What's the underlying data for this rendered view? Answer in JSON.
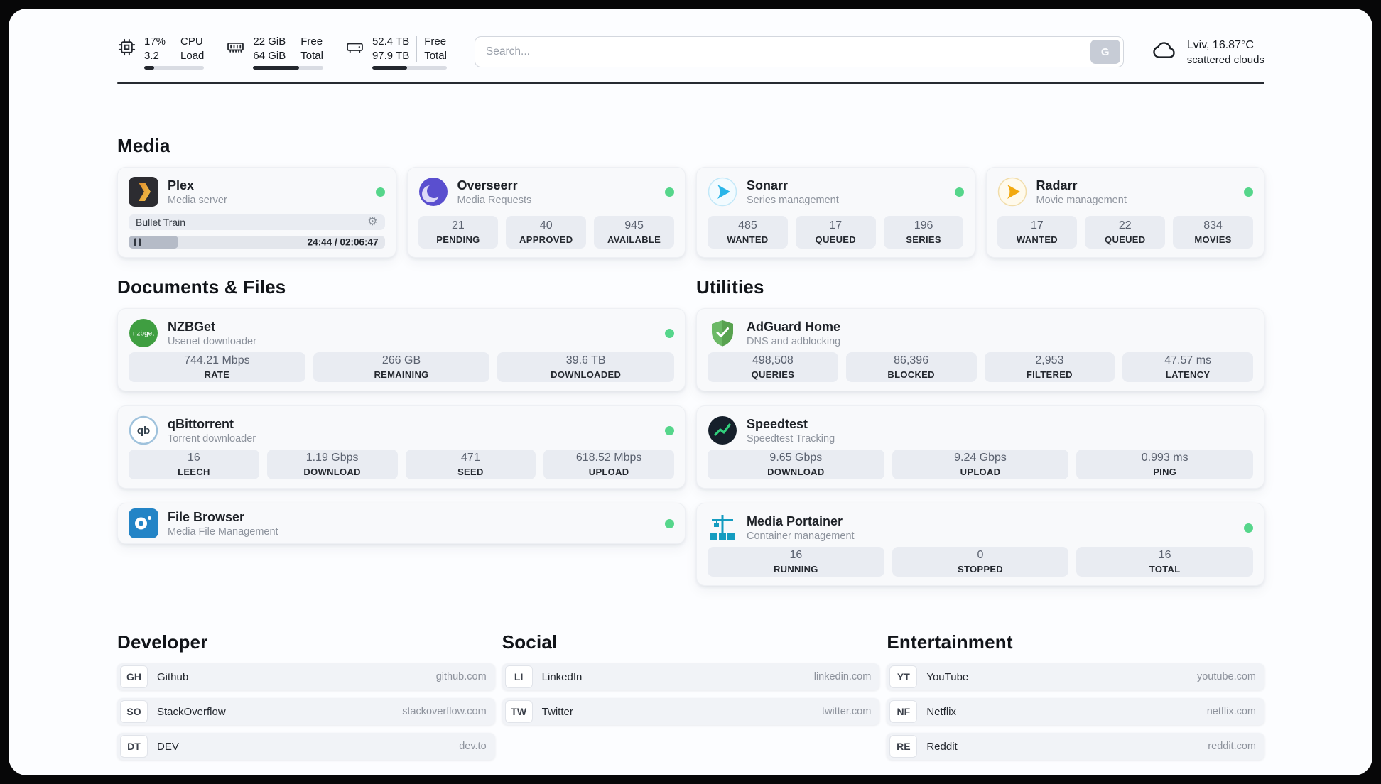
{
  "colors": {
    "status_green": "#56d68b",
    "bar_dark": "#23272e"
  },
  "icons": {
    "gear": "⚙",
    "nzbget_label": "nzbget",
    "qb_label": "qb"
  },
  "topbar": {
    "cpu": {
      "values": [
        "17%",
        "3.2"
      ],
      "labels": [
        "CPU",
        "Load"
      ],
      "percent": 17
    },
    "ram": {
      "values": [
        "22 GiB",
        "64 GiB"
      ],
      "labels": [
        "Free",
        "Total"
      ],
      "percent": 66
    },
    "disk": {
      "values": [
        "52.4 TB",
        "97.9 TB"
      ],
      "labels": [
        "Free",
        "Total"
      ],
      "percent": 47
    },
    "search": {
      "placeholder": "Search...",
      "button": "G"
    },
    "weather": {
      "location": "Lviv, 16.87°C",
      "condition": "scattered clouds"
    }
  },
  "sections": {
    "media": "Media",
    "documents": "Documents & Files",
    "utilities": "Utilities",
    "developer": "Developer",
    "social": "Social",
    "entertainment": "Entertainment"
  },
  "apps": {
    "plex": {
      "name": "Plex",
      "subtitle": "Media server",
      "now_playing": "Bullet Train",
      "time": "24:44 / 02:06:47",
      "progress_percent": 19.5
    },
    "overseerr": {
      "name": "Overseerr",
      "subtitle": "Media Requests",
      "stats": [
        {
          "value": "21",
          "label": "PENDING"
        },
        {
          "value": "40",
          "label": "APPROVED"
        },
        {
          "value": "945",
          "label": "AVAILABLE"
        }
      ]
    },
    "sonarr": {
      "name": "Sonarr",
      "subtitle": "Series management",
      "stats": [
        {
          "value": "485",
          "label": "WANTED"
        },
        {
          "value": "17",
          "label": "QUEUED"
        },
        {
          "value": "196",
          "label": "SERIES"
        }
      ]
    },
    "radarr": {
      "name": "Radarr",
      "subtitle": "Movie management",
      "stats": [
        {
          "value": "17",
          "label": "WANTED"
        },
        {
          "value": "22",
          "label": "QUEUED"
        },
        {
          "value": "834",
          "label": "MOVIES"
        }
      ]
    },
    "nzbget": {
      "name": "NZBGet",
      "subtitle": "Usenet downloader",
      "stats": [
        {
          "value": "744.21 Mbps",
          "label": "RATE"
        },
        {
          "value": "266 GB",
          "label": "REMAINING"
        },
        {
          "value": "39.6 TB",
          "label": "DOWNLOADED"
        }
      ]
    },
    "qbittorrent": {
      "name": "qBittorrent",
      "subtitle": "Torrent downloader",
      "stats": [
        {
          "value": "16",
          "label": "LEECH"
        },
        {
          "value": "1.19 Gbps",
          "label": "DOWNLOAD"
        },
        {
          "value": "471",
          "label": "SEED"
        },
        {
          "value": "618.52 Mbps",
          "label": "UPLOAD"
        }
      ]
    },
    "filebrowser": {
      "name": "File Browser",
      "subtitle": "Media File Management"
    },
    "adguard": {
      "name": "AdGuard Home",
      "subtitle": "DNS and adblocking",
      "stats": [
        {
          "value": "498,508",
          "label": "QUERIES"
        },
        {
          "value": "86,396",
          "label": "BLOCKED"
        },
        {
          "value": "2,953",
          "label": "FILTERED"
        },
        {
          "value": "47.57 ms",
          "label": "LATENCY"
        }
      ]
    },
    "speedtest": {
      "name": "Speedtest",
      "subtitle": "Speedtest Tracking",
      "stats": [
        {
          "value": "9.65 Gbps",
          "label": "DOWNLOAD"
        },
        {
          "value": "9.24 Gbps",
          "label": "UPLOAD"
        },
        {
          "value": "0.993 ms",
          "label": "PING"
        }
      ]
    },
    "portainer": {
      "name": "Media Portainer",
      "subtitle": "Container management",
      "stats": [
        {
          "value": "16",
          "label": "RUNNING"
        },
        {
          "value": "0",
          "label": "STOPPED"
        },
        {
          "value": "16",
          "label": "TOTAL"
        }
      ]
    }
  },
  "bookmarks": {
    "developer": [
      {
        "abbr": "GH",
        "name": "Github",
        "url": "github.com"
      },
      {
        "abbr": "SO",
        "name": "StackOverflow",
        "url": "stackoverflow.com"
      },
      {
        "abbr": "DT",
        "name": "DEV",
        "url": "dev.to"
      }
    ],
    "social": [
      {
        "abbr": "LI",
        "name": "LinkedIn",
        "url": "linkedin.com"
      },
      {
        "abbr": "TW",
        "name": "Twitter",
        "url": "twitter.com"
      }
    ],
    "entertainment": [
      {
        "abbr": "YT",
        "name": "YouTube",
        "url": "youtube.com"
      },
      {
        "abbr": "NF",
        "name": "Netflix",
        "url": "netflix.com"
      },
      {
        "abbr": "RE",
        "name": "Reddit",
        "url": "reddit.com"
      }
    ]
  }
}
